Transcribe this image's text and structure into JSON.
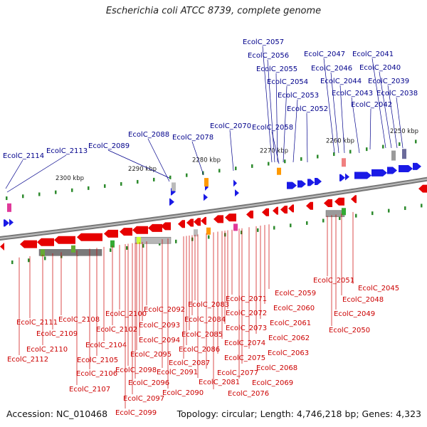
{
  "title": "Escherichia coli ATCC 8739, complete genome",
  "accession": "Accession: NC_010468",
  "summary": "Topology: circular; Length: 4,746,218 bp; Genes: 4,323",
  "colors": {
    "forward": "#1a1ae6",
    "reverse": "#e60000",
    "label_forward": "#00008b",
    "label_reverse": "#cc0000",
    "backbone": "#8a8a8a",
    "tick": "#2e8b2e"
  },
  "kbp_labels": [
    "2300 kbp",
    "2290 kbp",
    "2280 kbp",
    "2270 kbp",
    "2260 kbp",
    "2250 kbp"
  ],
  "forward_genes": [
    "EcolC_2114",
    "EcolC_2113",
    "EcolC_2089",
    "EcolC_2088",
    "EcolC_2078",
    "EcolC_2070",
    "EcolC_2058",
    "EcolC_2057",
    "EcolC_2056",
    "EcolC_2055",
    "EcolC_2054",
    "EcolC_2053",
    "EcolC_2052",
    "EcolC_2047",
    "EcolC_2046",
    "EcolC_2044",
    "EcolC_2043",
    "EcolC_2042",
    "EcolC_2041",
    "EcolC_2040",
    "EcolC_2039",
    "EcolC_2038"
  ],
  "reverse_genes": [
    "EcolC_2112",
    "EcolC_2111",
    "EcolC_2110",
    "EcolC_2109",
    "EcolC_2108",
    "EcolC_2107",
    "EcolC_2106",
    "EcolC_2105",
    "EcolC_2104",
    "EcolC_2102",
    "EcolC_2100",
    "EcolC_2099",
    "EcolC_2098",
    "EcolC_2097",
    "EcolC_2096",
    "EcolC_2095",
    "EcolC_2094",
    "EcolC_2093",
    "EcolC_2092",
    "EcolC_2091",
    "EcolC_2090",
    "EcolC_2087",
    "EcolC_2086",
    "EcolC_2085",
    "EcolC_2084",
    "EcolC_2083",
    "EcolC_2081",
    "EcolC_2077",
    "EcolC_2076",
    "EcolC_2075",
    "EcolC_2074",
    "EcolC_2073",
    "EcolC_2072",
    "EcolC_2071",
    "EcolC_2069",
    "EcolC_2068",
    "EcolC_2063",
    "EcolC_2062",
    "EcolC_2061",
    "EcolC_2060",
    "EcolC_2059",
    "EcolC_2051",
    "EcolC_2050",
    "EcolC_2049",
    "EcolC_2048",
    "EcolC_2045"
  ]
}
